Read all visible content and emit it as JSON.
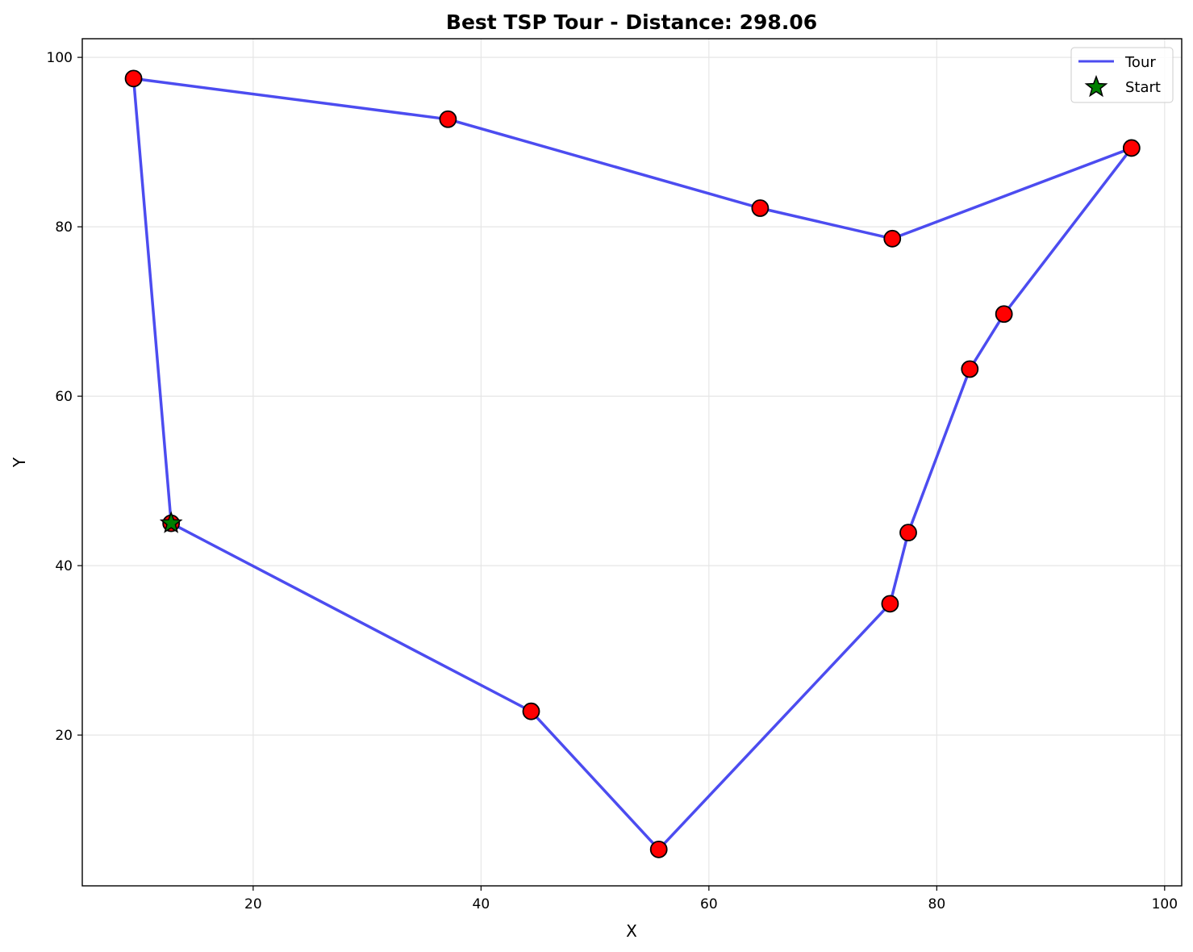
{
  "chart_data": {
    "type": "line",
    "title": "Best TSP Tour - Distance: 298.06",
    "xlabel": "X",
    "ylabel": "Y",
    "xlim": [
      5,
      101.5
    ],
    "ylim": [
      2.2,
      102.2
    ],
    "x_ticks": [
      20,
      40,
      60,
      80,
      100
    ],
    "y_ticks": [
      20,
      40,
      60,
      80,
      100
    ],
    "grid": true,
    "legend_position": "upper-right",
    "colors": {
      "tour": "#3333ee",
      "city": "#ff0000",
      "start": "#008000",
      "edge": "#000000",
      "grid": "#e6e6e6"
    },
    "series": [
      {
        "name": "Tour",
        "type": "line",
        "points": [
          [
            12.8,
            45.0
          ],
          [
            44.4,
            22.8
          ],
          [
            55.6,
            6.5
          ],
          [
            75.9,
            35.5
          ],
          [
            77.5,
            43.9
          ],
          [
            82.9,
            63.2
          ],
          [
            85.9,
            69.7
          ],
          [
            97.1,
            89.3
          ],
          [
            76.1,
            78.6
          ],
          [
            64.5,
            82.2
          ],
          [
            37.1,
            92.7
          ],
          [
            9.5,
            97.5
          ],
          [
            12.8,
            45.0
          ]
        ]
      },
      {
        "name": "Start",
        "type": "scatter",
        "marker": "star",
        "points": [
          [
            12.8,
            45.0
          ]
        ]
      }
    ],
    "cities": [
      [
        12.8,
        45.0
      ],
      [
        44.4,
        22.8
      ],
      [
        55.6,
        6.5
      ],
      [
        75.9,
        35.5
      ],
      [
        77.5,
        43.9
      ],
      [
        82.9,
        63.2
      ],
      [
        85.9,
        69.7
      ],
      [
        97.1,
        89.3
      ],
      [
        76.1,
        78.6
      ],
      [
        64.5,
        82.2
      ],
      [
        37.1,
        92.7
      ],
      [
        9.5,
        97.5
      ]
    ]
  }
}
